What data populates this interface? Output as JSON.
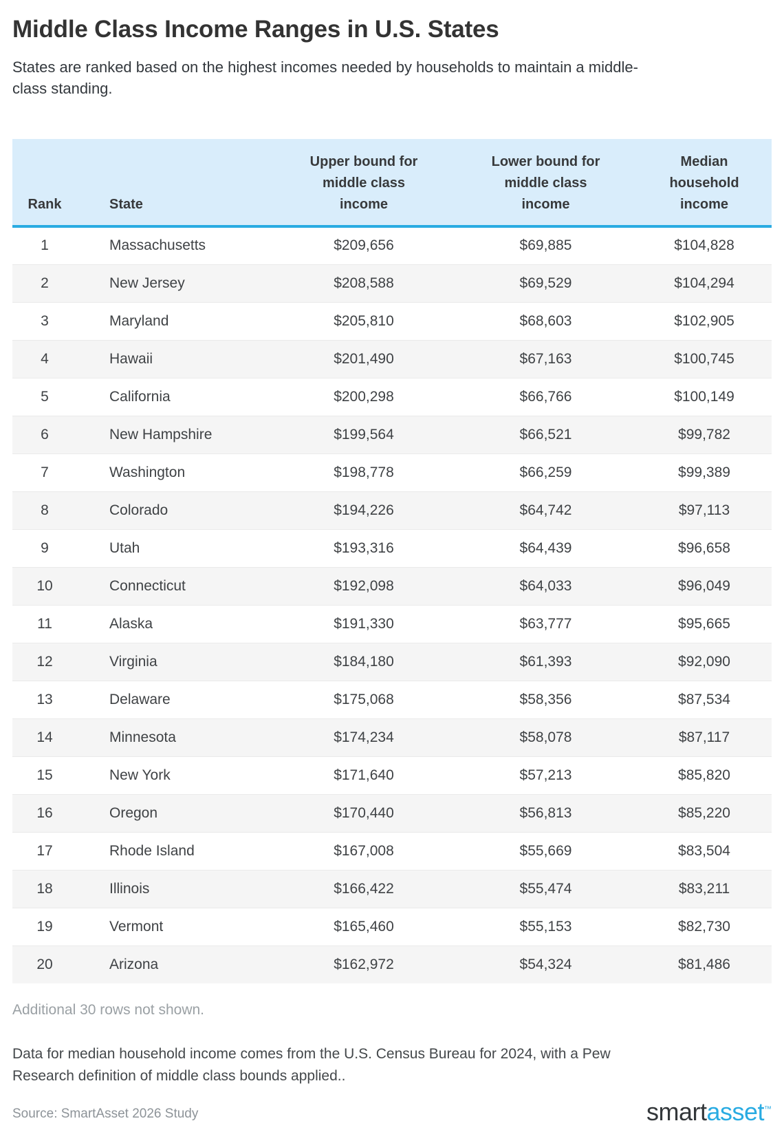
{
  "page": {
    "title": "Middle Class Income Ranges in U.S. States",
    "subtitle": "States are ranked based on the highest incomes needed by households to maintain a middle-class standing."
  },
  "table": {
    "columns": {
      "rank": "Rank",
      "state": "State",
      "upper": "Upper bound for middle class income",
      "lower": "Lower bound for middle class income",
      "median": "Median household income"
    },
    "rows": [
      {
        "rank": "1",
        "state": "Massachusetts",
        "upper": "$209,656",
        "lower": "$69,885",
        "median": "$104,828"
      },
      {
        "rank": "2",
        "state": "New Jersey",
        "upper": "$208,588",
        "lower": "$69,529",
        "median": "$104,294"
      },
      {
        "rank": "3",
        "state": "Maryland",
        "upper": "$205,810",
        "lower": "$68,603",
        "median": "$102,905"
      },
      {
        "rank": "4",
        "state": "Hawaii",
        "upper": "$201,490",
        "lower": "$67,163",
        "median": "$100,745"
      },
      {
        "rank": "5",
        "state": "California",
        "upper": "$200,298",
        "lower": "$66,766",
        "median": "$100,149"
      },
      {
        "rank": "6",
        "state": "New Hampshire",
        "upper": "$199,564",
        "lower": "$66,521",
        "median": "$99,782"
      },
      {
        "rank": "7",
        "state": "Washington",
        "upper": "$198,778",
        "lower": "$66,259",
        "median": "$99,389"
      },
      {
        "rank": "8",
        "state": "Colorado",
        "upper": "$194,226",
        "lower": "$64,742",
        "median": "$97,113"
      },
      {
        "rank": "9",
        "state": "Utah",
        "upper": "$193,316",
        "lower": "$64,439",
        "median": "$96,658"
      },
      {
        "rank": "10",
        "state": "Connecticut",
        "upper": "$192,098",
        "lower": "$64,033",
        "median": "$96,049"
      },
      {
        "rank": "11",
        "state": "Alaska",
        "upper": "$191,330",
        "lower": "$63,777",
        "median": "$95,665"
      },
      {
        "rank": "12",
        "state": "Virginia",
        "upper": "$184,180",
        "lower": "$61,393",
        "median": "$92,090"
      },
      {
        "rank": "13",
        "state": "Delaware",
        "upper": "$175,068",
        "lower": "$58,356",
        "median": "$87,534"
      },
      {
        "rank": "14",
        "state": "Minnesota",
        "upper": "$174,234",
        "lower": "$58,078",
        "median": "$87,117"
      },
      {
        "rank": "15",
        "state": "New York",
        "upper": "$171,640",
        "lower": "$57,213",
        "median": "$85,820"
      },
      {
        "rank": "16",
        "state": "Oregon",
        "upper": "$170,440",
        "lower": "$56,813",
        "median": "$85,220"
      },
      {
        "rank": "17",
        "state": "Rhode Island",
        "upper": "$167,008",
        "lower": "$55,669",
        "median": "$83,504"
      },
      {
        "rank": "18",
        "state": "Illinois",
        "upper": "$166,422",
        "lower": "$55,474",
        "median": "$83,211"
      },
      {
        "rank": "19",
        "state": "Vermont",
        "upper": "$165,460",
        "lower": "$55,153",
        "median": "$82,730"
      },
      {
        "rank": "20",
        "state": "Arizona",
        "upper": "$162,972",
        "lower": "$54,324",
        "median": "$81,486"
      }
    ]
  },
  "chart_data": {
    "type": "table",
    "title": "Middle Class Income Ranges in U.S. States",
    "columns": [
      "Rank",
      "State",
      "Upper bound for middle class income",
      "Lower bound for middle class income",
      "Median household income"
    ],
    "rows": [
      [
        1,
        "Massachusetts",
        209656,
        69885,
        104828
      ],
      [
        2,
        "New Jersey",
        208588,
        69529,
        104294
      ],
      [
        3,
        "Maryland",
        205810,
        68603,
        102905
      ],
      [
        4,
        "Hawaii",
        201490,
        67163,
        100745
      ],
      [
        5,
        "California",
        200298,
        66766,
        100149
      ],
      [
        6,
        "New Hampshire",
        199564,
        66521,
        99782
      ],
      [
        7,
        "Washington",
        198778,
        66259,
        99389
      ],
      [
        8,
        "Colorado",
        194226,
        64742,
        97113
      ],
      [
        9,
        "Utah",
        193316,
        64439,
        96658
      ],
      [
        10,
        "Connecticut",
        192098,
        64033,
        96049
      ],
      [
        11,
        "Alaska",
        191330,
        63777,
        95665
      ],
      [
        12,
        "Virginia",
        184180,
        61393,
        92090
      ],
      [
        13,
        "Delaware",
        175068,
        58356,
        87534
      ],
      [
        14,
        "Minnesota",
        174234,
        58078,
        87117
      ],
      [
        15,
        "New York",
        171640,
        57213,
        85820
      ],
      [
        16,
        "Oregon",
        170440,
        56813,
        85220
      ],
      [
        17,
        "Rhode Island",
        167008,
        55669,
        83504
      ],
      [
        18,
        "Illinois",
        166422,
        55474,
        83211
      ],
      [
        19,
        "Vermont",
        165460,
        55153,
        82730
      ],
      [
        20,
        "Arizona",
        162972,
        54324,
        81486
      ]
    ]
  },
  "notes": {
    "additional": "Additional 30 rows not shown.",
    "footnote": "Data for median household income comes from the U.S. Census Bureau for 2024, with a Pew Research definition of middle class bounds applied..",
    "source": "Source: SmartAsset 2026 Study"
  },
  "logo": {
    "part1": "smart",
    "part2": "asset",
    "tm": "™"
  },
  "colors": {
    "header_background": "#d9edfb",
    "header_border": "#29abe2",
    "row_stripe": "#f5f5f5",
    "logo_blue": "#29abe2",
    "logo_dark": "#33373a",
    "text_dark": "#333333",
    "text_muted": "#9aa0a4"
  }
}
